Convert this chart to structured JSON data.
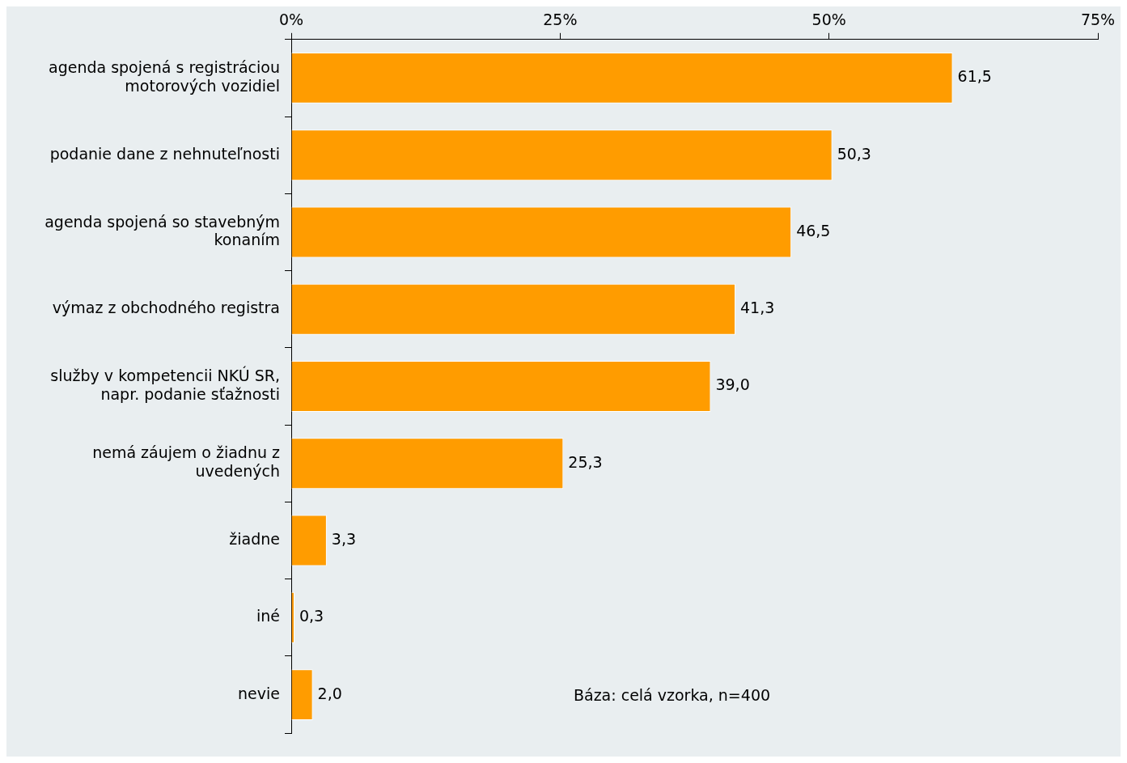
{
  "chart_data": {
    "type": "bar",
    "orientation": "horizontal",
    "categories": [
      "agenda spojená s registráciou motorových vozidiel",
      "podanie dane z nehnuteľnosti",
      "agenda spojená so stavebným konaním",
      "výmaz z obchodného registra",
      "služby v kompetencii NKÚ SR, napr. podanie sťažnosti",
      "nemá záujem o žiadnu z uvedených",
      "žiadne",
      "iné",
      "nevie"
    ],
    "values": [
      61.5,
      50.3,
      46.5,
      41.3,
      39.0,
      25.3,
      3.3,
      0.3,
      2.0
    ],
    "value_labels": [
      "61,5",
      "50,3",
      "46,5",
      "41,3",
      "39,0",
      "25,3",
      "3,3",
      "0,3",
      "2,0"
    ],
    "color": "#ff9c00",
    "xlim": [
      0,
      75
    ],
    "xticks": [
      {
        "value": 0,
        "label": "0%"
      },
      {
        "value": 25,
        "label": "25%"
      },
      {
        "value": 50,
        "label": "50%"
      },
      {
        "value": 75,
        "label": "75%"
      }
    ],
    "annotations": [
      "Báza: celá vzorka, n=400"
    ]
  }
}
